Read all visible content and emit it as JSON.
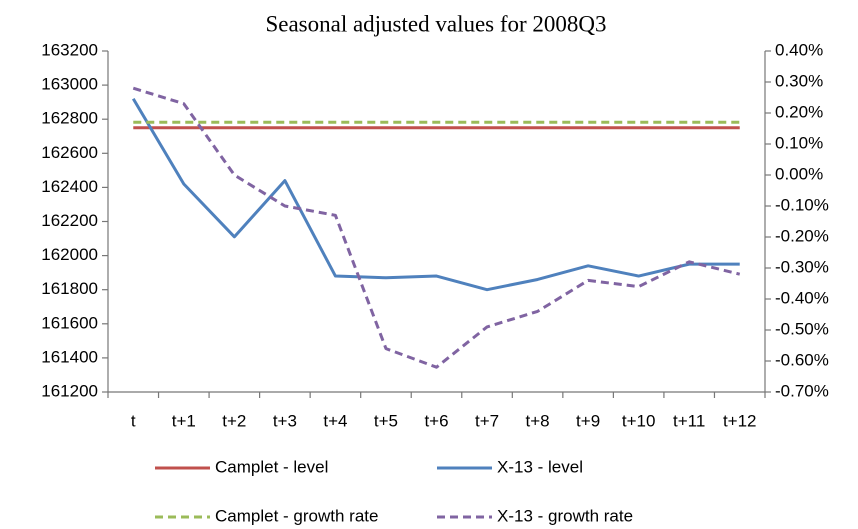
{
  "chart_data": {
    "type": "line",
    "title": "Seasonal adjusted values for 2008Q3",
    "categories": [
      "t",
      "t+1",
      "t+2",
      "t+3",
      "t+4",
      "t+5",
      "t+6",
      "t+7",
      "t+8",
      "t+9",
      "t+10",
      "t+11",
      "t+12"
    ],
    "ylim": [
      161200,
      163200
    ],
    "yticks": [
      161200,
      161400,
      161600,
      161800,
      162000,
      162200,
      162400,
      162600,
      162800,
      163000,
      163200
    ],
    "y2lim": [
      -0.7,
      0.4
    ],
    "y2ticks": [
      {
        "value": -0.7,
        "label": "-0.70%"
      },
      {
        "value": -0.6,
        "label": "-0.60%"
      },
      {
        "value": -0.5,
        "label": "-0.50%"
      },
      {
        "value": -0.4,
        "label": "-0.40%"
      },
      {
        "value": -0.3,
        "label": "-0.30%"
      },
      {
        "value": -0.2,
        "label": "-0.20%"
      },
      {
        "value": -0.1,
        "label": "-0.10%"
      },
      {
        "value": 0,
        "label": "0.00%"
      },
      {
        "value": 0.1,
        "label": "0.10%"
      },
      {
        "value": 0.2,
        "label": "0.20%"
      },
      {
        "value": 0.3,
        "label": "0.30%"
      },
      {
        "value": 0.4,
        "label": "0.40%"
      }
    ],
    "grid": false,
    "legend": "bottom",
    "series": [
      {
        "name": "Camplet - level",
        "color": "#c0504d",
        "line_style": "solid",
        "values": [
          162750,
          162750,
          162750,
          162750,
          162750,
          162750,
          162750,
          162750,
          162750,
          162750,
          162750,
          162750,
          162750
        ]
      },
      {
        "name": "X-13 - level",
        "color": "#4f81bd",
        "line_style": "solid",
        "values": [
          162920,
          162420,
          162110,
          162440,
          161880,
          161870,
          161880,
          161800,
          161860,
          161940,
          161880,
          161950,
          161950
        ]
      },
      {
        "name": "Camplet - growth rate",
        "color": "#9bbb59",
        "line_style": "dashed",
        "axis": "y2",
        "values": [
          0.17,
          0.17,
          0.17,
          0.17,
          0.17,
          0.17,
          0.17,
          0.17,
          0.17,
          0.17,
          0.17,
          0.17,
          0.17
        ]
      },
      {
        "name": "X-13 - growth rate",
        "color": "#8064a2",
        "line_style": "dashed",
        "axis": "y2",
        "values": [
          0.28,
          0.23,
          0.0,
          -0.1,
          -0.13,
          -0.56,
          -0.62,
          -0.49,
          -0.44,
          -0.34,
          -0.36,
          -0.28,
          -0.32
        ]
      }
    ]
  }
}
